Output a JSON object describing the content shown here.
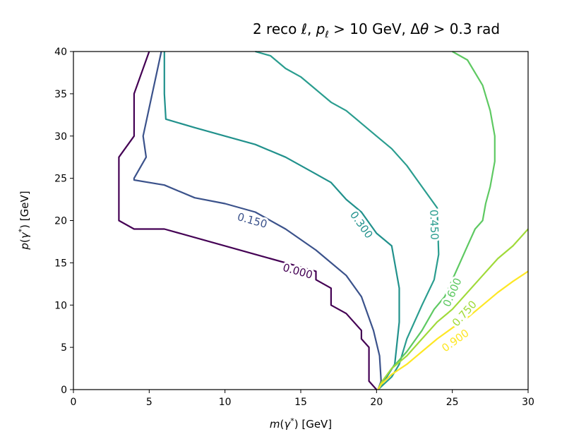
{
  "chart_data": {
    "type": "contour",
    "title": {
      "main": "2 reco ℓ, ",
      "p": "p",
      "p_sub": "ℓ",
      "mid": " > 10 GeV, Δ",
      "theta": "θ",
      "tail": " > 0.3 rad"
    },
    "xlabel": {
      "func": "m",
      "open": "(",
      "gamma": "γ",
      "star": "*",
      "close": ") [GeV]"
    },
    "ylabel": {
      "func": "p",
      "open": "(",
      "gamma": "γ",
      "star": "*",
      "close": ") [GeV]"
    },
    "xlim": [
      0,
      30
    ],
    "ylim": [
      0,
      40
    ],
    "xticks": [
      "0",
      "5",
      "10",
      "15",
      "20",
      "25",
      "30"
    ],
    "yticks": [
      "0",
      "5",
      "10",
      "15",
      "20",
      "25",
      "30",
      "35",
      "40"
    ],
    "contours": [
      {
        "level": "0.000",
        "color": "#440154",
        "label_at": [
          14.8,
          14.0
        ],
        "points": [
          [
            5,
            40
          ],
          [
            4,
            35
          ],
          [
            4,
            30
          ],
          [
            3,
            27.5
          ],
          [
            3,
            20
          ],
          [
            4,
            19
          ],
          [
            6,
            19
          ],
          [
            12,
            16
          ],
          [
            16,
            14
          ],
          [
            16,
            13
          ],
          [
            17,
            12
          ],
          [
            17,
            10
          ],
          [
            18,
            9
          ],
          [
            19,
            7
          ],
          [
            19,
            6
          ],
          [
            19.5,
            5
          ],
          [
            19.5,
            1
          ],
          [
            20,
            0
          ]
        ]
      },
      {
        "level": "0.150",
        "color": "#3b528b",
        "label_at": [
          11.8,
          20.0
        ],
        "points": [
          [
            5.8,
            40
          ],
          [
            5.2,
            35
          ],
          [
            4.6,
            30
          ],
          [
            4.8,
            27.5
          ],
          [
            4,
            25
          ],
          [
            4,
            24.8
          ],
          [
            6,
            24.2
          ],
          [
            8,
            22.7
          ],
          [
            10,
            22
          ],
          [
            12,
            21
          ],
          [
            14,
            19
          ],
          [
            16,
            16.5
          ],
          [
            18,
            13.5
          ],
          [
            19,
            11
          ],
          [
            19.8,
            7
          ],
          [
            20.2,
            4
          ],
          [
            20.3,
            1
          ],
          [
            20.1,
            0
          ]
        ]
      },
      {
        "level": "0.300",
        "color": "#21918c",
        "label_at": [
          19.0,
          19.5
        ],
        "points": [
          [
            6,
            40
          ],
          [
            6,
            35
          ],
          [
            6.1,
            32
          ],
          [
            8,
            31
          ],
          [
            10,
            30
          ],
          [
            12,
            29
          ],
          [
            14,
            27.5
          ],
          [
            16,
            25.5
          ],
          [
            17,
            24.5
          ],
          [
            18,
            22.5
          ],
          [
            19,
            21
          ],
          [
            20,
            18.5
          ],
          [
            21,
            17
          ],
          [
            21.2,
            15
          ],
          [
            21.5,
            12
          ],
          [
            21.5,
            8
          ],
          [
            21.2,
            3
          ],
          [
            20.5,
            1
          ],
          [
            20.1,
            0
          ]
        ]
      },
      {
        "level": "0.450",
        "color": "#2a9d8f",
        "label_at": [
          23.8,
          19.5
        ],
        "points": [
          [
            12,
            40
          ],
          [
            13,
            39.5
          ],
          [
            14,
            38
          ],
          [
            15,
            37
          ],
          [
            16,
            35.5
          ],
          [
            17,
            34
          ],
          [
            18,
            33
          ],
          [
            19,
            31.5
          ],
          [
            20,
            30
          ],
          [
            21,
            28.5
          ],
          [
            22,
            26.5
          ],
          [
            22.6,
            25
          ],
          [
            23,
            24
          ],
          [
            24,
            21.5
          ],
          [
            24.1,
            16
          ],
          [
            23.8,
            13
          ],
          [
            23,
            10
          ],
          [
            22,
            6
          ],
          [
            21.5,
            3
          ],
          [
            21,
            1.5
          ],
          [
            20.1,
            0
          ]
        ]
      },
      {
        "level": "0.600",
        "color": "#5ec962",
        "label_at": [
          25.0,
          11.5
        ],
        "points": [
          [
            25,
            40
          ],
          [
            26,
            39
          ],
          [
            27,
            36
          ],
          [
            27.5,
            33
          ],
          [
            27.8,
            30
          ],
          [
            27.8,
            27
          ],
          [
            27.5,
            24
          ],
          [
            27.2,
            22
          ],
          [
            27,
            20
          ],
          [
            26.5,
            19
          ],
          [
            26,
            17
          ],
          [
            25.5,
            15
          ],
          [
            25,
            13
          ],
          [
            24.5,
            11
          ],
          [
            23.8,
            9.5
          ],
          [
            23,
            7
          ],
          [
            22,
            4.5
          ],
          [
            21,
            2.5
          ],
          [
            20.3,
            0.8
          ],
          [
            20.1,
            0
          ]
        ]
      },
      {
        "level": "0.750",
        "color": "#a0da39",
        "label_at": [
          25.8,
          9.0
        ],
        "points": [
          [
            30,
            19
          ],
          [
            29,
            17
          ],
          [
            28,
            15.5
          ],
          [
            27,
            13.5
          ],
          [
            26,
            11.5
          ],
          [
            25,
            9.5
          ],
          [
            24,
            8
          ],
          [
            23,
            6
          ],
          [
            22,
            4
          ],
          [
            21,
            2.5
          ],
          [
            20.3,
            0.8
          ],
          [
            20.1,
            0
          ]
        ]
      },
      {
        "level": "0.900",
        "color": "#fde725",
        "label_at": [
          25.2,
          5.8
        ],
        "points": [
          [
            30,
            14
          ],
          [
            29,
            12.8
          ],
          [
            28,
            11.5
          ],
          [
            27,
            10
          ],
          [
            26,
            8.5
          ],
          [
            25,
            7.3
          ],
          [
            24,
            6
          ],
          [
            23,
            4.5
          ],
          [
            22,
            3
          ],
          [
            21,
            1.8
          ],
          [
            20.3,
            0.6
          ],
          [
            20.1,
            0
          ]
        ]
      }
    ]
  }
}
